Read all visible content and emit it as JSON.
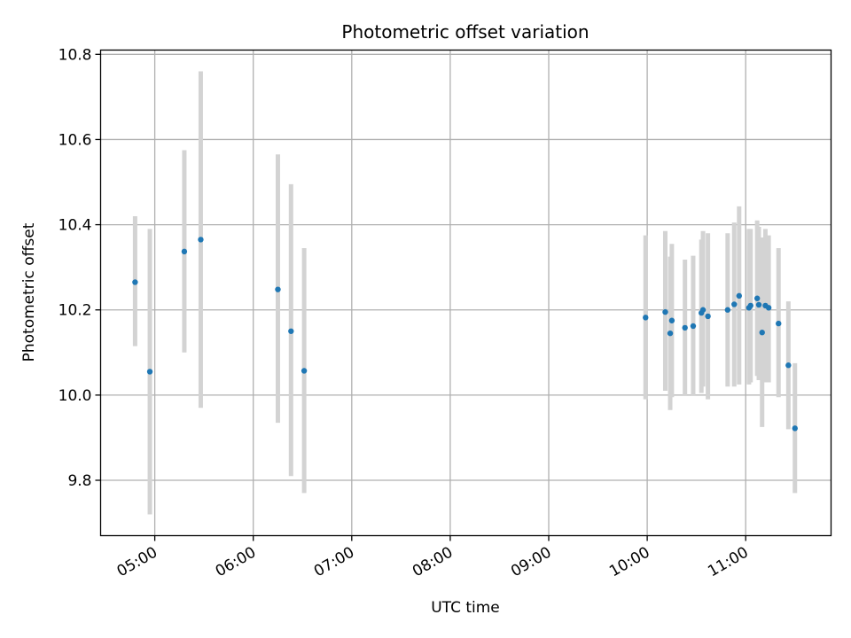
{
  "chart_data": {
    "type": "scatter",
    "title": "Photometric offset variation",
    "xlabel": "UTC time",
    "ylabel": "Photometric offset",
    "xlim": [
      "04:27",
      "11:52"
    ],
    "ylim": [
      9.67,
      10.81
    ],
    "grid": true,
    "x_ticks": [
      "05:00",
      "06:00",
      "07:00",
      "08:00",
      "09:00",
      "10:00",
      "11:00"
    ],
    "y_ticks": [
      9.8,
      10.0,
      10.2,
      10.4,
      10.6,
      10.8
    ],
    "y_tick_labels": [
      "9.8",
      "10.0",
      "10.2",
      "10.4",
      "10.6",
      "10.8"
    ],
    "colors": {
      "point": "#1f77b4",
      "errorbar": "#d3d3d3",
      "grid": "#b0b0b0"
    },
    "series": [
      {
        "points": [
          {
            "x": "04:48",
            "y": 10.265,
            "lo": 10.115,
            "hi": 10.42
          },
          {
            "x": "04:57",
            "y": 10.055,
            "lo": 9.72,
            "hi": 10.39
          },
          {
            "x": "05:18",
            "y": 10.337,
            "lo": 10.1,
            "hi": 10.575
          },
          {
            "x": "05:28",
            "y": 10.365,
            "lo": 9.97,
            "hi": 10.76
          },
          {
            "x": "06:15",
            "y": 10.248,
            "lo": 9.935,
            "hi": 10.565
          },
          {
            "x": "06:23",
            "y": 10.15,
            "lo": 9.81,
            "hi": 10.495
          },
          {
            "x": "06:31",
            "y": 10.057,
            "lo": 9.77,
            "hi": 10.345
          },
          {
            "x": "09:59",
            "y": 10.182,
            "lo": 9.99,
            "hi": 10.375
          },
          {
            "x": "10:11",
            "y": 10.195,
            "lo": 10.01,
            "hi": 10.385
          },
          {
            "x": "10:14",
            "y": 10.145,
            "lo": 9.965,
            "hi": 10.325
          },
          {
            "x": "10:15",
            "y": 10.175,
            "lo": 9.995,
            "hi": 10.355
          },
          {
            "x": "10:23",
            "y": 10.158,
            "lo": 9.998,
            "hi": 10.318
          },
          {
            "x": "10:28",
            "y": 10.162,
            "lo": 9.998,
            "hi": 10.327
          },
          {
            "x": "10:33",
            "y": 10.193,
            "lo": 10.005,
            "hi": 10.365
          },
          {
            "x": "10:34",
            "y": 10.2,
            "lo": 10.02,
            "hi": 10.385
          },
          {
            "x": "10:37",
            "y": 10.185,
            "lo": 9.99,
            "hi": 10.38
          },
          {
            "x": "10:49",
            "y": 10.2,
            "lo": 10.02,
            "hi": 10.38
          },
          {
            "x": "10:53",
            "y": 10.213,
            "lo": 10.02,
            "hi": 10.405
          },
          {
            "x": "10:56",
            "y": 10.233,
            "lo": 10.025,
            "hi": 10.443
          },
          {
            "x": "11:02",
            "y": 10.205,
            "lo": 10.025,
            "hi": 10.39
          },
          {
            "x": "11:03",
            "y": 10.21,
            "lo": 10.03,
            "hi": 10.39
          },
          {
            "x": "11:07",
            "y": 10.227,
            "lo": 10.045,
            "hi": 10.41
          },
          {
            "x": "11:08",
            "y": 10.212,
            "lo": 10.035,
            "hi": 10.395
          },
          {
            "x": "11:10",
            "y": 10.147,
            "lo": 9.925,
            "hi": 10.37
          },
          {
            "x": "11:12",
            "y": 10.21,
            "lo": 10.03,
            "hi": 10.39
          },
          {
            "x": "11:14",
            "y": 10.205,
            "lo": 10.03,
            "hi": 10.375
          },
          {
            "x": "11:20",
            "y": 10.168,
            "lo": 9.995,
            "hi": 10.345
          },
          {
            "x": "11:26",
            "y": 10.07,
            "lo": 9.92,
            "hi": 10.22
          },
          {
            "x": "11:30",
            "y": 9.922,
            "lo": 9.77,
            "hi": 10.075
          }
        ]
      }
    ]
  }
}
